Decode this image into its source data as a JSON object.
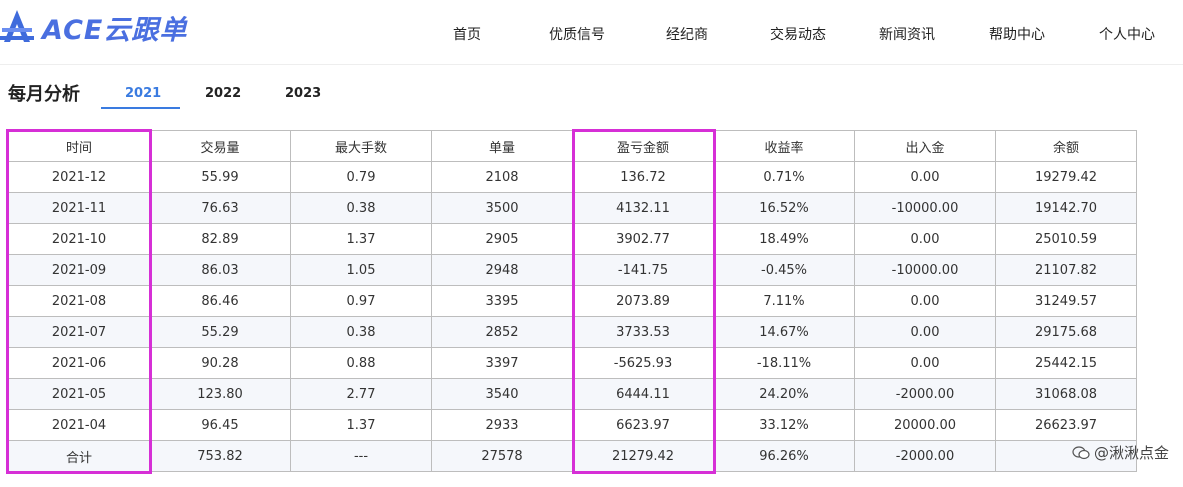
{
  "logo": {
    "text": "ACE云跟单",
    "icon": "ace-logo-icon"
  },
  "nav": [
    "首页",
    "优质信号",
    "经纪商",
    "交易动态",
    "新闻资讯",
    "帮助中心",
    "个人中心"
  ],
  "section_title": "每月分析",
  "tabs": [
    {
      "label": "2021",
      "active": true
    },
    {
      "label": "2022",
      "active": false
    },
    {
      "label": "2023",
      "active": false
    }
  ],
  "table": {
    "headers": [
      "时间",
      "交易量",
      "最大手数",
      "单量",
      "盈亏金额",
      "收益率",
      "出入金",
      "余额"
    ],
    "rows": [
      [
        "2021-12",
        "55.99",
        "0.79",
        "2108",
        "136.72",
        "0.71%",
        "0.00",
        "19279.42"
      ],
      [
        "2021-11",
        "76.63",
        "0.38",
        "3500",
        "4132.11",
        "16.52%",
        "-10000.00",
        "19142.70"
      ],
      [
        "2021-10",
        "82.89",
        "1.37",
        "2905",
        "3902.77",
        "18.49%",
        "0.00",
        "25010.59"
      ],
      [
        "2021-09",
        "86.03",
        "1.05",
        "2948",
        "-141.75",
        "-0.45%",
        "-10000.00",
        "21107.82"
      ],
      [
        "2021-08",
        "86.46",
        "0.97",
        "3395",
        "2073.89",
        "7.11%",
        "0.00",
        "31249.57"
      ],
      [
        "2021-07",
        "55.29",
        "0.38",
        "2852",
        "3733.53",
        "14.67%",
        "0.00",
        "29175.68"
      ],
      [
        "2021-06",
        "90.28",
        "0.88",
        "3397",
        "-5625.93",
        "-18.11%",
        "0.00",
        "25442.15"
      ],
      [
        "2021-05",
        "123.80",
        "2.77",
        "3540",
        "6444.11",
        "24.20%",
        "-2000.00",
        "31068.08"
      ],
      [
        "2021-04",
        "96.45",
        "1.37",
        "2933",
        "6623.97",
        "33.12%",
        "20000.00",
        "26623.97"
      ],
      [
        "合计",
        "753.82",
        "---",
        "27578",
        "21279.42",
        "96.26%",
        "-2000.00",
        ""
      ]
    ]
  },
  "colors": {
    "positive": "#4a7fd8",
    "negative": "#e53935",
    "accent": "#3a7be0",
    "highlight": "#d62fd6"
  },
  "watermark": {
    "text": "@湫湫点金",
    "icon": "wechat-icon"
  }
}
